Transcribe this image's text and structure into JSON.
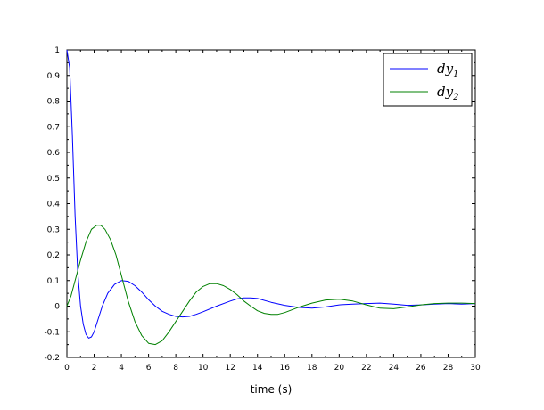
{
  "chart_data": {
    "type": "line",
    "title": "",
    "xlabel": "time (s)",
    "ylabel": "",
    "xlim": [
      0,
      30
    ],
    "ylim": [
      -0.2,
      1
    ],
    "grid": false,
    "legend_position": "top-right",
    "xticks": [
      0,
      2,
      4,
      6,
      8,
      10,
      12,
      14,
      16,
      18,
      20,
      22,
      24,
      26,
      28,
      30
    ],
    "xtick_labels": [
      "0",
      "2",
      "4",
      "6",
      "8",
      "10",
      "12",
      "14",
      "16",
      "18",
      "20",
      "22",
      "24",
      "26",
      "28",
      "30"
    ],
    "yticks": [
      -0.2,
      -0.1,
      0,
      0.1,
      0.2,
      0.3,
      0.4,
      0.5,
      0.6,
      0.7,
      0.8,
      0.9,
      1
    ],
    "ytick_labels": [
      "-0.2",
      "-0.1",
      "0",
      "0.1",
      "0.2",
      "0.3",
      "0.4",
      "0.5",
      "0.6",
      "0.7",
      "0.8",
      "0.9",
      "1"
    ],
    "series": [
      {
        "name_main": "dy",
        "name_sub": "1",
        "color": "#0000ff",
        "x": [
          0,
          0.2,
          0.4,
          0.6,
          0.8,
          1.0,
          1.2,
          1.4,
          1.6,
          1.8,
          2.0,
          2.3,
          2.6,
          3.0,
          3.5,
          4.0,
          4.5,
          5.0,
          5.5,
          6.0,
          6.5,
          7.0,
          7.5,
          8.0,
          8.5,
          9.0,
          9.5,
          10.0,
          11.0,
          12.0,
          12.5,
          13.0,
          13.5,
          14.0,
          15.0,
          16.0,
          17.0,
          18.0,
          19.0,
          20.0,
          21.0,
          22.0,
          23.0,
          24.0,
          25.0,
          26.0,
          27.0,
          28.0,
          29.0,
          30.0
        ],
        "y": [
          1.0,
          0.93,
          0.67,
          0.35,
          0.13,
          0.0,
          -0.07,
          -0.11,
          -0.125,
          -0.12,
          -0.1,
          -0.05,
          0.0,
          0.05,
          0.085,
          0.1,
          0.097,
          0.08,
          0.055,
          0.025,
          0.0,
          -0.02,
          -0.032,
          -0.04,
          -0.042,
          -0.04,
          -0.032,
          -0.022,
          0.0,
          0.02,
          0.028,
          0.032,
          0.032,
          0.03,
          0.015,
          0.003,
          -0.005,
          -0.008,
          -0.003,
          0.005,
          0.008,
          0.01,
          0.012,
          0.008,
          0.003,
          0.005,
          0.008,
          0.01,
          0.008,
          0.01
        ]
      },
      {
        "name_main": "dy",
        "name_sub": "2",
        "color": "#008000",
        "x": [
          0,
          0.3,
          0.6,
          1.0,
          1.4,
          1.8,
          2.2,
          2.5,
          2.8,
          3.2,
          3.6,
          4.0,
          4.5,
          5.0,
          5.5,
          6.0,
          6.5,
          7.0,
          7.5,
          8.0,
          8.5,
          9.0,
          9.5,
          10.0,
          10.5,
          11.0,
          11.5,
          12.0,
          12.5,
          13.0,
          13.5,
          14.0,
          14.5,
          15.0,
          15.5,
          16.0,
          16.5,
          17.0,
          18.0,
          19.0,
          20.0,
          21.0,
          22.0,
          23.0,
          24.0,
          25.0,
          26.0,
          27.0,
          28.0,
          29.0,
          30.0
        ],
        "y": [
          0.0,
          0.04,
          0.1,
          0.18,
          0.25,
          0.3,
          0.316,
          0.315,
          0.3,
          0.26,
          0.2,
          0.12,
          0.02,
          -0.06,
          -0.115,
          -0.145,
          -0.15,
          -0.135,
          -0.1,
          -0.06,
          -0.02,
          0.02,
          0.055,
          0.077,
          0.088,
          0.088,
          0.08,
          0.065,
          0.045,
          0.02,
          0.0,
          -0.018,
          -0.028,
          -0.032,
          -0.032,
          -0.025,
          -0.015,
          -0.005,
          0.012,
          0.024,
          0.027,
          0.02,
          0.005,
          -0.008,
          -0.01,
          -0.003,
          0.005,
          0.01,
          0.012,
          0.012,
          0.01
        ]
      }
    ]
  }
}
